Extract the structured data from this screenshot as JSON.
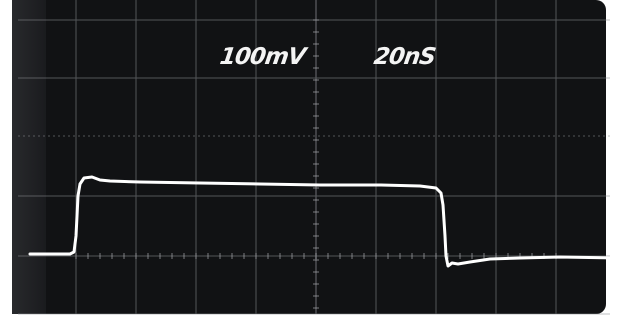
{
  "scope": {
    "vertical_scale_label": "100mV",
    "horizontal_scale_label": "20nS"
  },
  "colors": {
    "screen": "#111214",
    "graticule": "#8a8c90",
    "trace": "#ffffff",
    "label": "#f4f4f4"
  }
}
